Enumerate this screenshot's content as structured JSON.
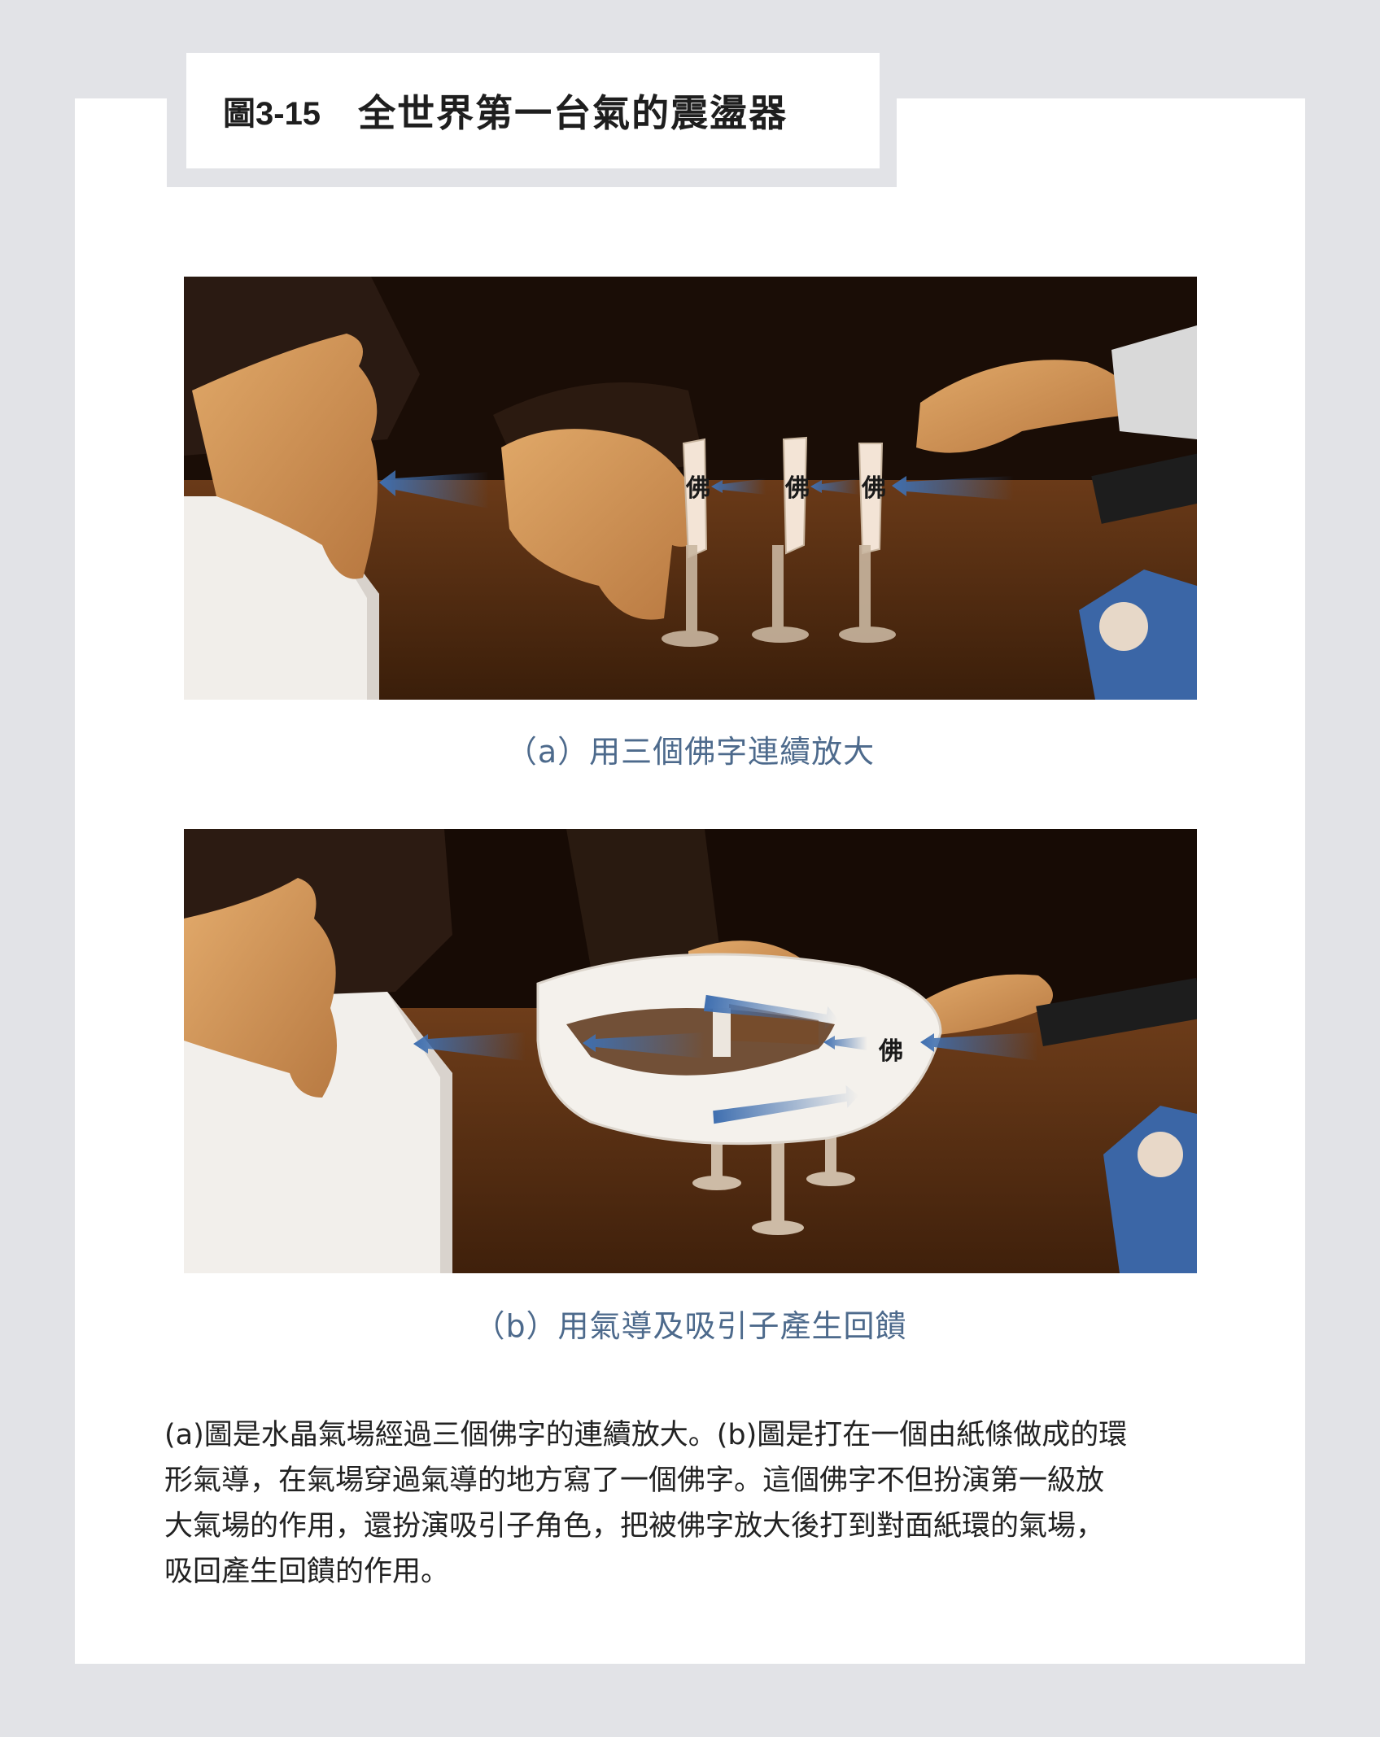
{
  "figure": {
    "number": "圖3-15",
    "title": "全世界第一台氣的震盪器"
  },
  "panel_a": {
    "caption": "（a）用三個佛字連續放大",
    "labels": [
      "佛",
      "佛",
      "佛"
    ]
  },
  "panel_b": {
    "caption": "（b）用氣導及吸引子產生回饋",
    "label": "佛"
  },
  "description": {
    "lines": [
      "(a)圖是水晶氣場經過三個佛字的連續放大。(b)圖是打在一個由紙條做成的環",
      "形氣導，在氣場穿過氣導的地方寫了一個佛字。這個佛字不但扮演第一級放",
      "大氣場的作用，還扮演吸引子角色，把被佛字放大後打到對面紙環的氣場，",
      "吸回產生回饋的作用。"
    ]
  },
  "colors": {
    "page_background": "#e2e3e7",
    "caption": "#4d6a8c",
    "arrow": "#3f6fb0"
  }
}
